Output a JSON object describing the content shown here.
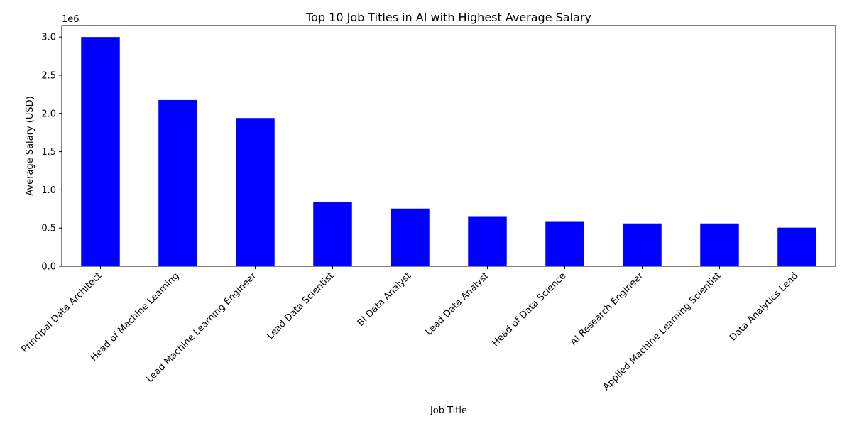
{
  "chart_data": {
    "type": "bar",
    "title": "Top 10 Job Titles in AI with Highest Average Salary",
    "xlabel": "Job Title",
    "ylabel": "Average Salary (USD)",
    "y_offset_label": "1e6",
    "y_scale": 1000000,
    "ylim": [
      0,
      3150000
    ],
    "y_ticks": [
      0,
      500000,
      1000000,
      1500000,
      2000000,
      2500000,
      3000000
    ],
    "y_tick_labels": [
      "0.0",
      "0.5",
      "1.0",
      "1.5",
      "2.0",
      "2.5",
      "3.0"
    ],
    "bar_color": "#0000ff",
    "grid": false,
    "categories": [
      "Principal Data Architect",
      "Head of Machine Learning",
      "Lead Machine Learning Engineer",
      "Lead Data Scientist",
      "BI Data Analyst",
      "Lead Data Analyst",
      "Head of Data Science",
      "AI Research Engineer",
      "Applied Machine Learning Scientist",
      "Data Analytics Lead"
    ],
    "values": [
      3000000,
      2175000,
      1940000,
      840000,
      755000,
      655000,
      590000,
      560000,
      560000,
      505000
    ]
  }
}
